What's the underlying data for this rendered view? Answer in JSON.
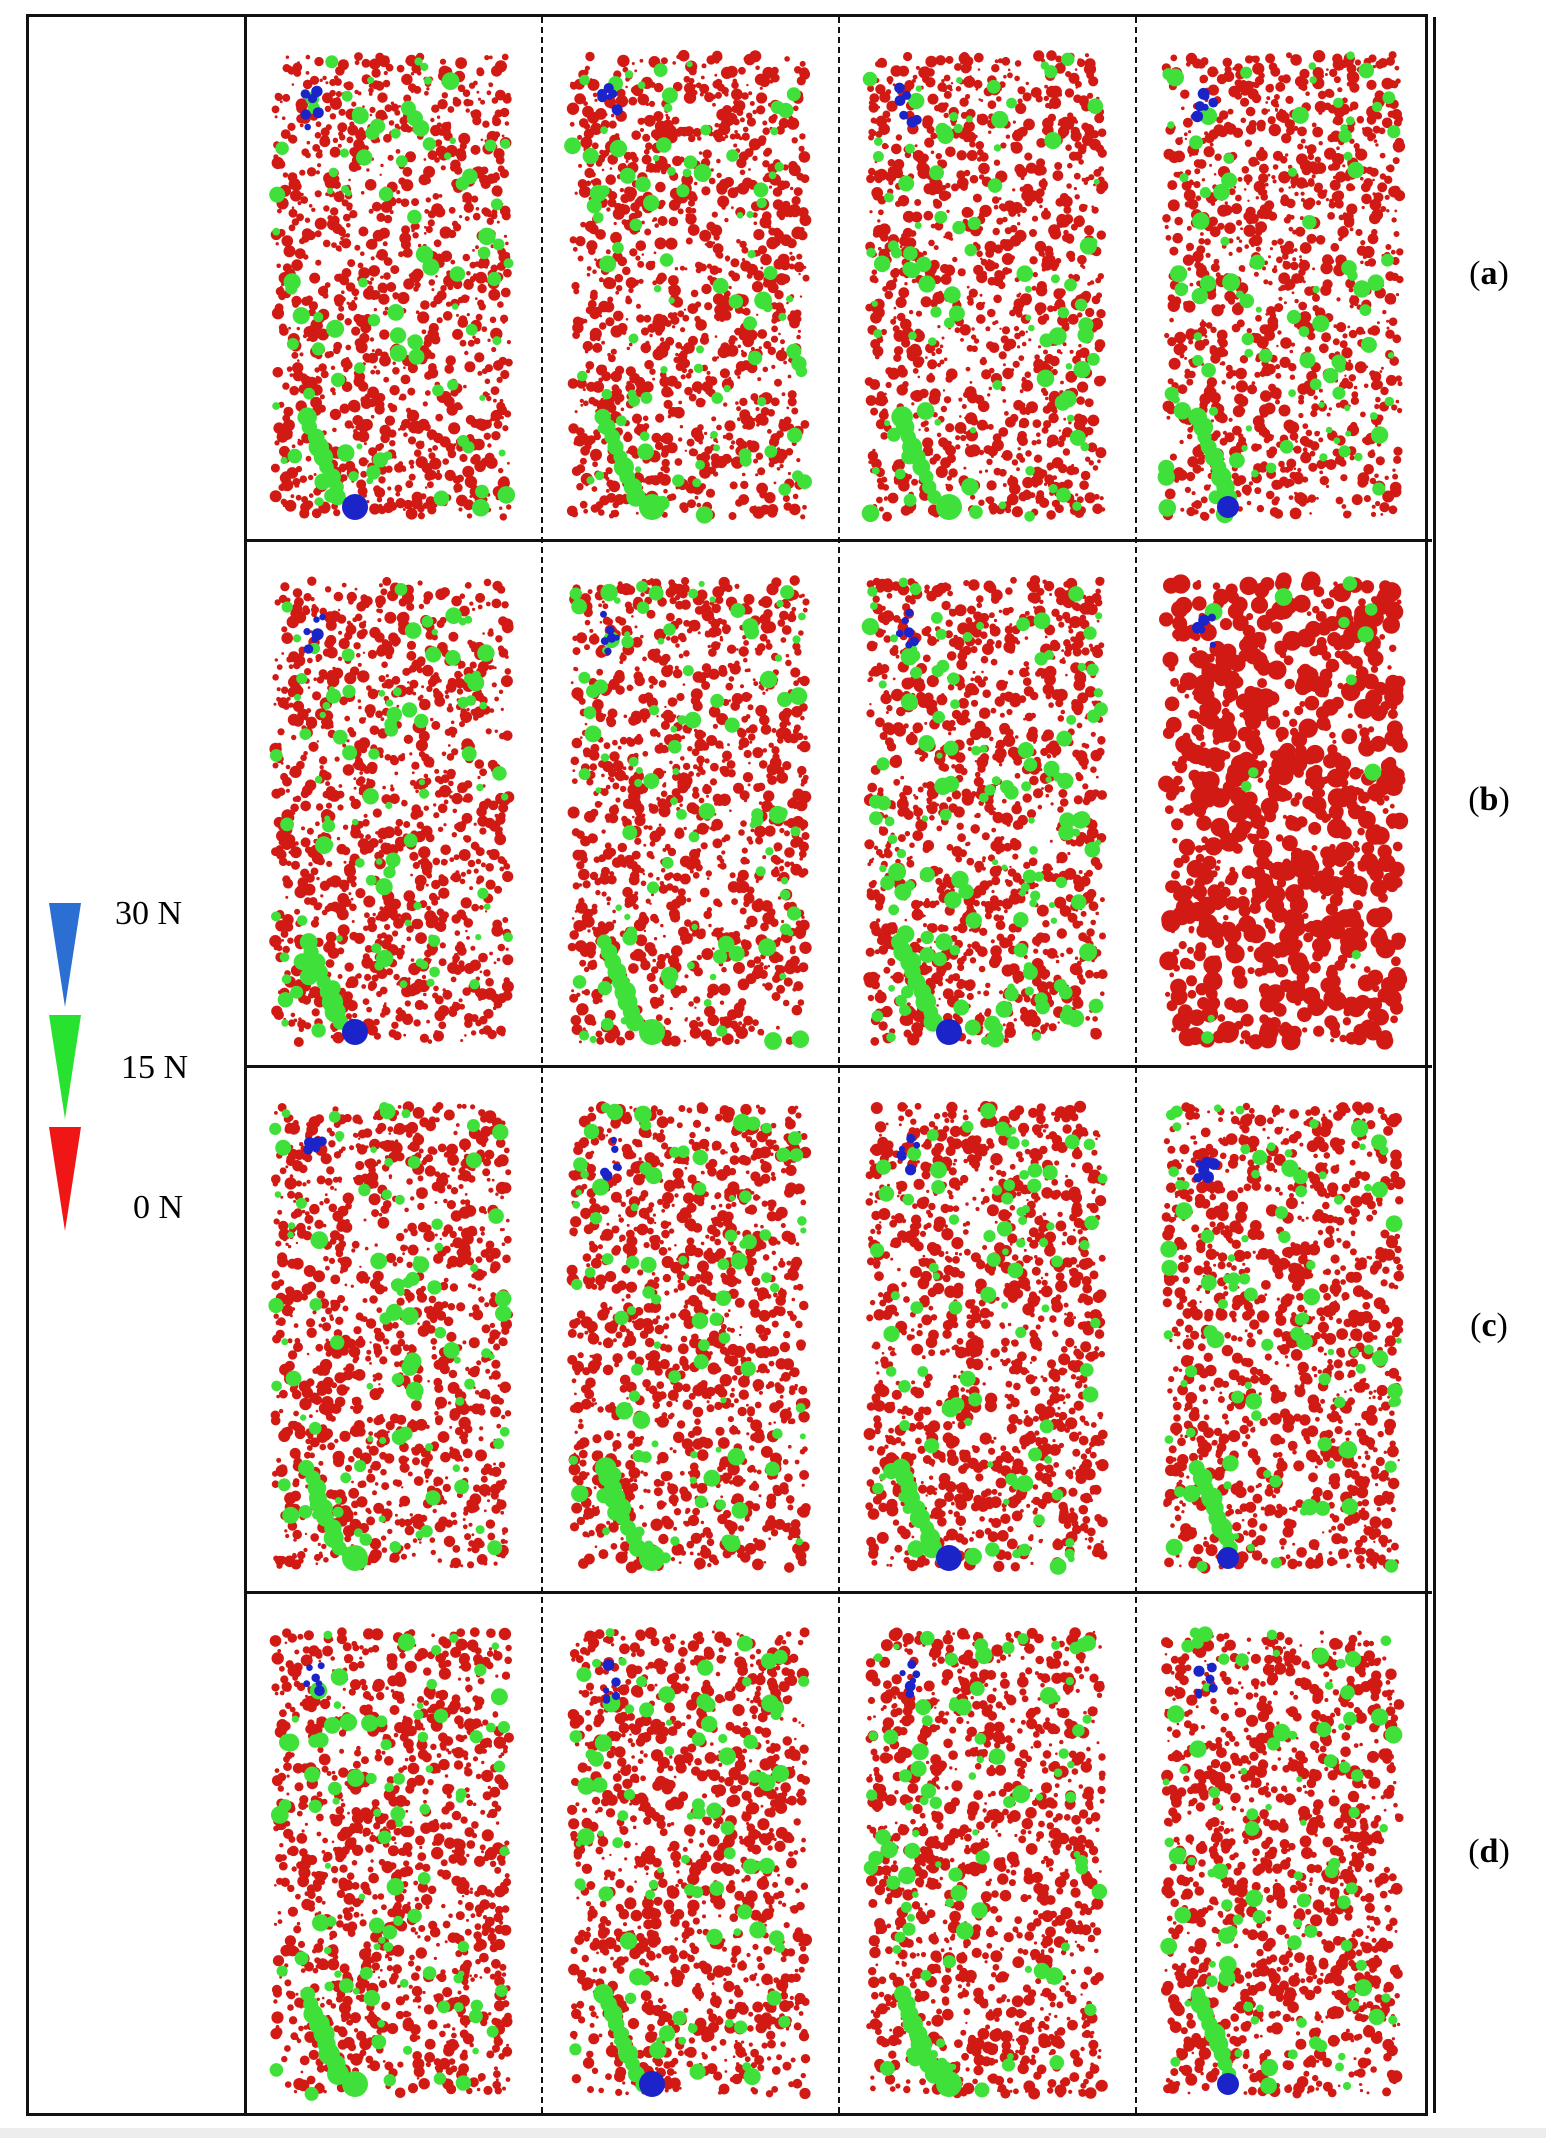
{
  "figure": {
    "row_labels": [
      "a",
      "b",
      "c",
      "d"
    ],
    "columns": 4
  },
  "legend": {
    "items": [
      {
        "label": "30 N",
        "color": "#2a6fd1"
      },
      {
        "label": "15 N",
        "color": "#27e22f"
      },
      {
        "label": "0 N",
        "color": "#f01616"
      }
    ]
  },
  "particle_colors": {
    "low_force": "#d11a14",
    "medium_force": "#3fe03a",
    "high_force": "#1a24c8"
  }
}
